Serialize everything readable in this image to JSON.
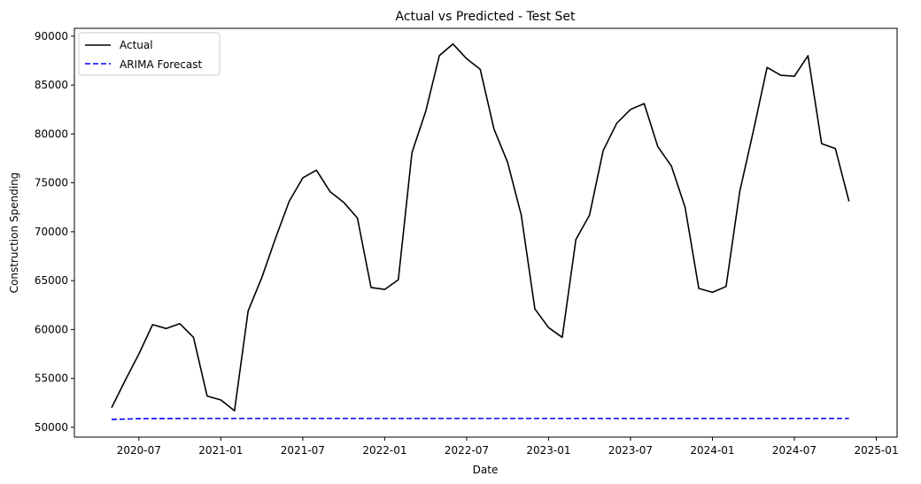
{
  "chart_data": {
    "type": "line",
    "title": "Actual vs Predicted - Test Set",
    "xlabel": "Date",
    "ylabel": "Construction Spending",
    "x_start_month": "2020-05",
    "x_ticks": [
      "2020-07",
      "2021-01",
      "2021-07",
      "2022-01",
      "2022-07",
      "2023-01",
      "2023-07",
      "2024-01",
      "2024-07",
      "2025-01"
    ],
    "y_ticks": [
      50000,
      55000,
      60000,
      65000,
      70000,
      75000,
      80000,
      85000,
      90000
    ],
    "y_tick_labels": [
      "50000",
      "55000",
      "60000",
      "65000",
      "70000",
      "75000",
      "80000",
      "85000",
      "90000"
    ],
    "ylim": [
      49000,
      90800
    ],
    "grid": false,
    "legend_position": "top-left",
    "series": [
      {
        "name": "Actual",
        "color": "#000000",
        "style": "solid",
        "values": [
          52000,
          54800,
          57500,
          60500,
          60100,
          60600,
          59200,
          53200,
          52800,
          51700,
          61900,
          65300,
          69300,
          73100,
          75500,
          76300,
          74100,
          73000,
          71400,
          64300,
          64100,
          65100,
          78100,
          82300,
          88000,
          89200,
          87700,
          86600,
          80500,
          77100,
          71700,
          62100,
          60200,
          59200,
          69200,
          71700,
          78300,
          81100,
          82500,
          83100,
          78700,
          76700,
          72500,
          64200,
          63800,
          64400,
          74100,
          80300,
          86800,
          86000,
          85900,
          88000,
          79000,
          78500,
          73100
        ]
      },
      {
        "name": "ARIMA Forecast",
        "color": "#0000ff",
        "style": "dashed",
        "values": [
          50800,
          50850,
          50880,
          50890,
          50895,
          50900,
          50900,
          50900,
          50900,
          50900,
          50900,
          50900,
          50900,
          50900,
          50900,
          50900,
          50900,
          50900,
          50900,
          50900,
          50900,
          50900,
          50900,
          50900,
          50900,
          50900,
          50900,
          50900,
          50900,
          50900,
          50900,
          50900,
          50900,
          50900,
          50900,
          50900,
          50900,
          50900,
          50900,
          50900,
          50900,
          50900,
          50900,
          50900,
          50900,
          50900,
          50900,
          50900,
          50900,
          50900,
          50900,
          50900,
          50900,
          50900,
          50900
        ]
      }
    ]
  }
}
